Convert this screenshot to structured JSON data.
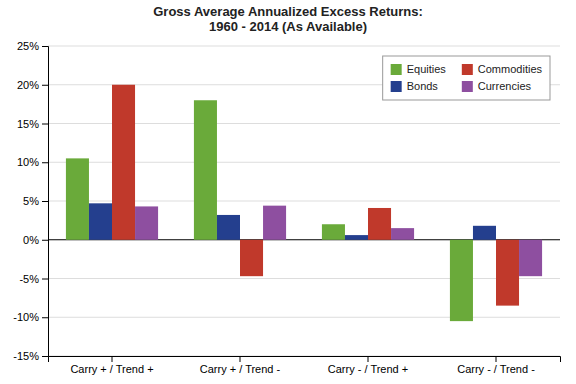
{
  "chart_data": {
    "type": "bar",
    "title": "Gross Average Annualized Excess Returns:\n1960 - 2014 (As Available)",
    "categories": [
      "Carry + / Trend +",
      "Carry + / Trend -",
      "Carry - / Trend +",
      "Carry - / Trend -"
    ],
    "series": [
      {
        "name": "Equities",
        "color": "#6aaa3a",
        "values": [
          0.105,
          0.18,
          0.02,
          -0.105
        ]
      },
      {
        "name": "Bonds",
        "color": "#243f8e",
        "values": [
          0.047,
          0.032,
          0.006,
          0.018
        ]
      },
      {
        "name": "Commodities",
        "color": "#c0392b",
        "values": [
          0.2,
          -0.047,
          0.041,
          -0.085
        ]
      },
      {
        "name": "Currencies",
        "color": "#8e4fa0",
        "values": [
          0.043,
          0.044,
          0.015,
          -0.047
        ]
      }
    ],
    "ylim": [
      -0.15,
      0.25
    ],
    "yticks": [
      {
        "value": -0.15,
        "label": "-15%"
      },
      {
        "value": -0.1,
        "label": "-10%"
      },
      {
        "value": -0.05,
        "label": "-5%"
      },
      {
        "value": 0.0,
        "label": "0%"
      },
      {
        "value": 0.05,
        "label": "5%"
      },
      {
        "value": 0.1,
        "label": "10%"
      },
      {
        "value": 0.15,
        "label": "15%"
      },
      {
        "value": 0.2,
        "label": "20%"
      },
      {
        "value": 0.25,
        "label": "25%"
      }
    ],
    "grid": true,
    "legend": "upper right"
  }
}
